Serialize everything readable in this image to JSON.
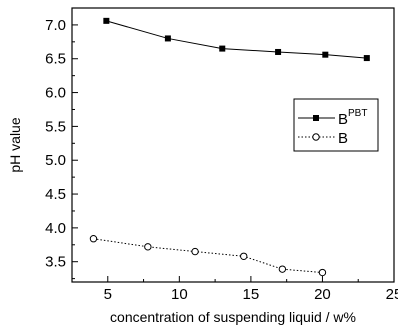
{
  "chart_data": {
    "type": "line",
    "title": "",
    "xlabel": "concentration of suspending liquid / w%",
    "ylabel": "pH value",
    "xlim": [
      2.5,
      25
    ],
    "ylim": [
      3.2,
      7.25
    ],
    "x_ticks": [
      5,
      10,
      15,
      20,
      25
    ],
    "x_tick_labels": [
      "5",
      "10",
      "15",
      "20",
      "25"
    ],
    "y_ticks": [
      3.5,
      4.0,
      4.5,
      5.0,
      5.5,
      6.0,
      6.5,
      7.0
    ],
    "y_tick_labels": [
      "3.5",
      "4.0",
      "4.5",
      "5.0",
      "5.5",
      "6.0",
      "6.5",
      "7.0"
    ],
    "grid": false,
    "legend_position": "right-upper",
    "series": [
      {
        "name": "B",
        "name_superscript": "PBT",
        "marker": "filled-square",
        "line_style": "solid",
        "color": "#000000",
        "x": [
          4.9,
          9.2,
          13.0,
          16.9,
          20.2,
          23.1
        ],
        "y": [
          7.06,
          6.8,
          6.65,
          6.6,
          6.56,
          6.51
        ]
      },
      {
        "name": "B",
        "name_superscript": "",
        "marker": "open-circle",
        "line_style": "dotted",
        "color": "#000000",
        "x": [
          4.0,
          7.8,
          11.1,
          14.5,
          17.2,
          20.0
        ],
        "y": [
          3.84,
          3.72,
          3.65,
          3.58,
          3.39,
          3.34
        ]
      }
    ]
  }
}
